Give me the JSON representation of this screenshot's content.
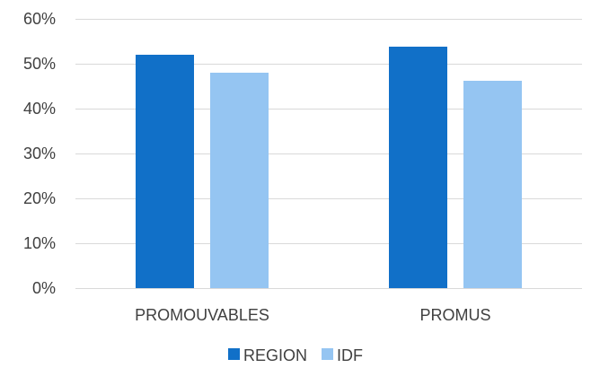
{
  "chart_data": {
    "type": "bar",
    "categories": [
      "PROMOUVABLES",
      "PROMUS"
    ],
    "series": [
      {
        "name": "REGION",
        "values": [
          0.52,
          0.538
        ],
        "color": "#1170C8"
      },
      {
        "name": "IDF",
        "values": [
          0.48,
          0.462
        ],
        "color": "#95C5F2"
      }
    ],
    "ylim": [
      0,
      0.6
    ],
    "yticks": [
      "0%",
      "10%",
      "20%",
      "30%",
      "40%",
      "50%",
      "60%"
    ],
    "grid": true,
    "legend_position": "bottom"
  },
  "colors": {
    "grid": "#D9D9D9",
    "text": "#404040"
  }
}
